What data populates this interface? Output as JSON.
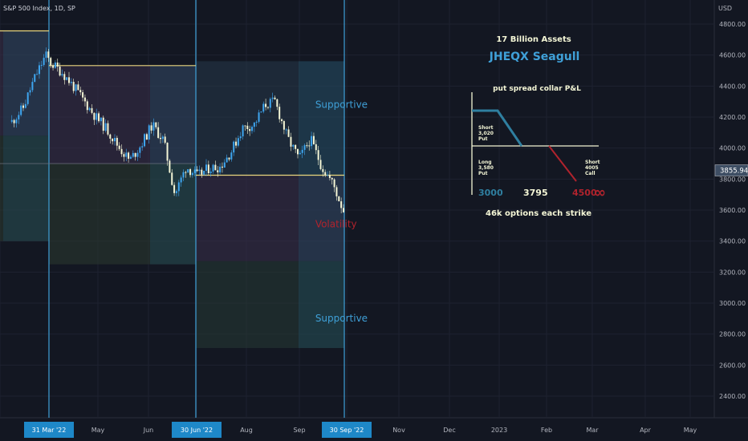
{
  "header": {
    "symbol": "S&P 500 Index, 1D, SP",
    "currency": "USD"
  },
  "price_tag": "3855.94",
  "colors": {
    "background": "#131722",
    "up": "#3ea6f0",
    "down": "#f4f6d6",
    "yellow": "#e9d67e",
    "cyan": "#3fa0d8",
    "red": "#b0232d",
    "tag": "#3e4e64"
  },
  "chart_data": {
    "type": "candlestick",
    "ylim": [
      2200,
      4900
    ],
    "y_ticks": [
      "4800.00",
      "4600.00",
      "4400.00",
      "4200.00",
      "4000.00",
      "3800.00",
      "3600.00",
      "3400.00",
      "3200.00",
      "3000.00",
      "2800.00",
      "2600.00",
      "2400.00"
    ],
    "x_ticks": [
      {
        "label": "31 Mar '22",
        "highlight": true
      },
      {
        "label": "May",
        "highlight": false
      },
      {
        "label": "Jun",
        "highlight": false
      },
      {
        "label": "30 Jun '22",
        "highlight": true
      },
      {
        "label": "Aug",
        "highlight": false
      },
      {
        "label": "Sep",
        "highlight": false
      },
      {
        "label": "30 Sep '22",
        "highlight": true
      },
      {
        "label": "Nov",
        "highlight": false
      },
      {
        "label": "Dec",
        "highlight": false
      },
      {
        "label": "2023",
        "highlight": false
      },
      {
        "label": "Feb",
        "highlight": false
      },
      {
        "label": "Mar",
        "highlight": false
      },
      {
        "label": "Apr",
        "highlight": false
      },
      {
        "label": "May",
        "highlight": false
      }
    ],
    "price_path": [
      [
        "2022-03-08",
        4170
      ],
      [
        "2022-03-15",
        4260
      ],
      [
        "2022-03-22",
        4450
      ],
      [
        "2022-03-29",
        4600
      ],
      [
        "2022-04-01",
        4550
      ],
      [
        "2022-04-08",
        4490
      ],
      [
        "2022-04-15",
        4400
      ],
      [
        "2022-04-22",
        4300
      ],
      [
        "2022-04-29",
        4200
      ],
      [
        "2022-05-06",
        4120
      ],
      [
        "2022-05-13",
        4010
      ],
      [
        "2022-05-20",
        3920
      ],
      [
        "2022-05-27",
        4020
      ],
      [
        "2022-06-03",
        4150
      ],
      [
        "2022-06-10",
        4050
      ],
      [
        "2022-06-17",
        3700
      ],
      [
        "2022-06-24",
        3880
      ],
      [
        "2022-07-01",
        3820
      ],
      [
        "2022-07-08",
        3870
      ],
      [
        "2022-07-15",
        3880
      ],
      [
        "2022-07-22",
        3980
      ],
      [
        "2022-07-29",
        4130
      ],
      [
        "2022-08-05",
        4150
      ],
      [
        "2022-08-12",
        4280
      ],
      [
        "2022-08-18",
        4300
      ],
      [
        "2022-08-26",
        4060
      ],
      [
        "2022-09-02",
        3930
      ],
      [
        "2022-09-09",
        4060
      ],
      [
        "2022-09-16",
        3880
      ],
      [
        "2022-09-23",
        3770
      ],
      [
        "2022-09-27",
        3660
      ],
      [
        "2022-09-30",
        3585
      ]
    ],
    "horizontal_levels": [
      {
        "value": 4756,
        "from": "2022-02-15",
        "to": "2022-03-31",
        "color": "yellow"
      },
      {
        "value": 4532,
        "from": "2022-03-31",
        "to": "2022-06-30",
        "color": "yellow"
      },
      {
        "value": 3825,
        "from": "2022-06-30",
        "to": "2022-09-30",
        "color": "yellow"
      },
      {
        "value": 3900,
        "from": "2022-02-15",
        "to": "2022-06-30",
        "color": "grey"
      }
    ],
    "vertical_markers": [
      "2022-03-31",
      "2022-06-30",
      "2022-09-30"
    ],
    "range_boxes": [
      {
        "from": "2022-02-15",
        "to": "2022-03-31",
        "top": 4756,
        "bottom": 4080
      },
      {
        "from": "2022-02-15",
        "to": "2022-03-31",
        "top": 4080,
        "bottom": 3400
      },
      {
        "from": "2022-03-31",
        "to": "2022-06-30",
        "top": 4532,
        "bottom": 3900
      },
      {
        "from": "2022-03-31",
        "to": "2022-06-30",
        "top": 3900,
        "bottom": 3250
      },
      {
        "from": "2022-06-30",
        "to": "2022-09-30",
        "top": 4560,
        "bottom": 3825
      },
      {
        "from": "2022-06-30",
        "to": "2022-09-30",
        "top": 3825,
        "bottom": 3270
      },
      {
        "from": "2022-06-30",
        "to": "2022-09-30",
        "top": 3270,
        "bottom": 2710
      }
    ],
    "zone_labels": [
      {
        "text": "Supportive",
        "date": "2022-09-12",
        "value": 4260,
        "color": "cyan"
      },
      {
        "text": "Volatility",
        "date": "2022-09-12",
        "value": 3490,
        "color": "red"
      },
      {
        "text": "Supportive",
        "date": "2022-09-12",
        "value": 2880,
        "color": "cyan"
      }
    ]
  },
  "annotation": {
    "assets": "17 Billion Assets",
    "fund": "JHEQX Seagull",
    "subtitle": "put spread collar P&L",
    "short_put": [
      "Short",
      "3,020",
      "Put"
    ],
    "long_put": [
      "Long",
      "3,580",
      "Put"
    ],
    "short_call": [
      "Short",
      "4005",
      "Call"
    ],
    "strike_low": "3000",
    "strike_mid": "3795",
    "strike_high": "4500",
    "infinity": "∞",
    "footer": "46k options each strike"
  }
}
